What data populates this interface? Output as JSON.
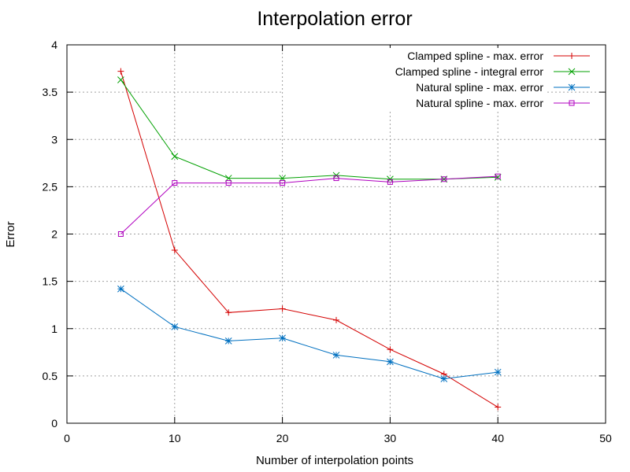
{
  "chart_data": {
    "type": "line",
    "title": "Interpolation error",
    "xlabel": "Number of interpolation points",
    "ylabel": "Error",
    "xlim": [
      0,
      50
    ],
    "ylim": [
      0,
      4
    ],
    "x_ticks": [
      0,
      10,
      20,
      30,
      40,
      50
    ],
    "y_ticks": [
      0,
      0.5,
      1,
      1.5,
      2,
      2.5,
      3,
      3.5,
      4
    ],
    "x_tick_labels": [
      "0",
      "10",
      "20",
      "30",
      "40",
      "50"
    ],
    "y_tick_labels": [
      "0",
      "0.5",
      "1",
      "1.5",
      "2",
      "2.5",
      "3",
      "3.5",
      "4"
    ],
    "grid": true,
    "legend_position": "top-right",
    "x": [
      5,
      10,
      15,
      20,
      25,
      30,
      35,
      40
    ],
    "series": [
      {
        "name": "Clamped spline - max. error",
        "color": "#d40000",
        "marker": "plus",
        "values": [
          3.72,
          1.83,
          1.17,
          1.21,
          1.09,
          0.78,
          0.52,
          0.17
        ]
      },
      {
        "name": "Clamped spline - integral error",
        "color": "#00a000",
        "marker": "cross",
        "values": [
          3.63,
          2.82,
          2.59,
          2.59,
          2.62,
          2.58,
          2.58,
          2.6
        ]
      },
      {
        "name": "Natural spline - max. error",
        "color": "#0070c0",
        "marker": "star",
        "values": [
          1.42,
          1.02,
          0.87,
          0.9,
          0.72,
          0.65,
          0.47,
          0.54
        ]
      },
      {
        "name": "Natural spline - max. error",
        "color": "#b000c0",
        "marker": "square",
        "values": [
          2.0,
          2.54,
          2.54,
          2.54,
          2.59,
          2.55,
          2.58,
          2.61
        ]
      }
    ]
  }
}
